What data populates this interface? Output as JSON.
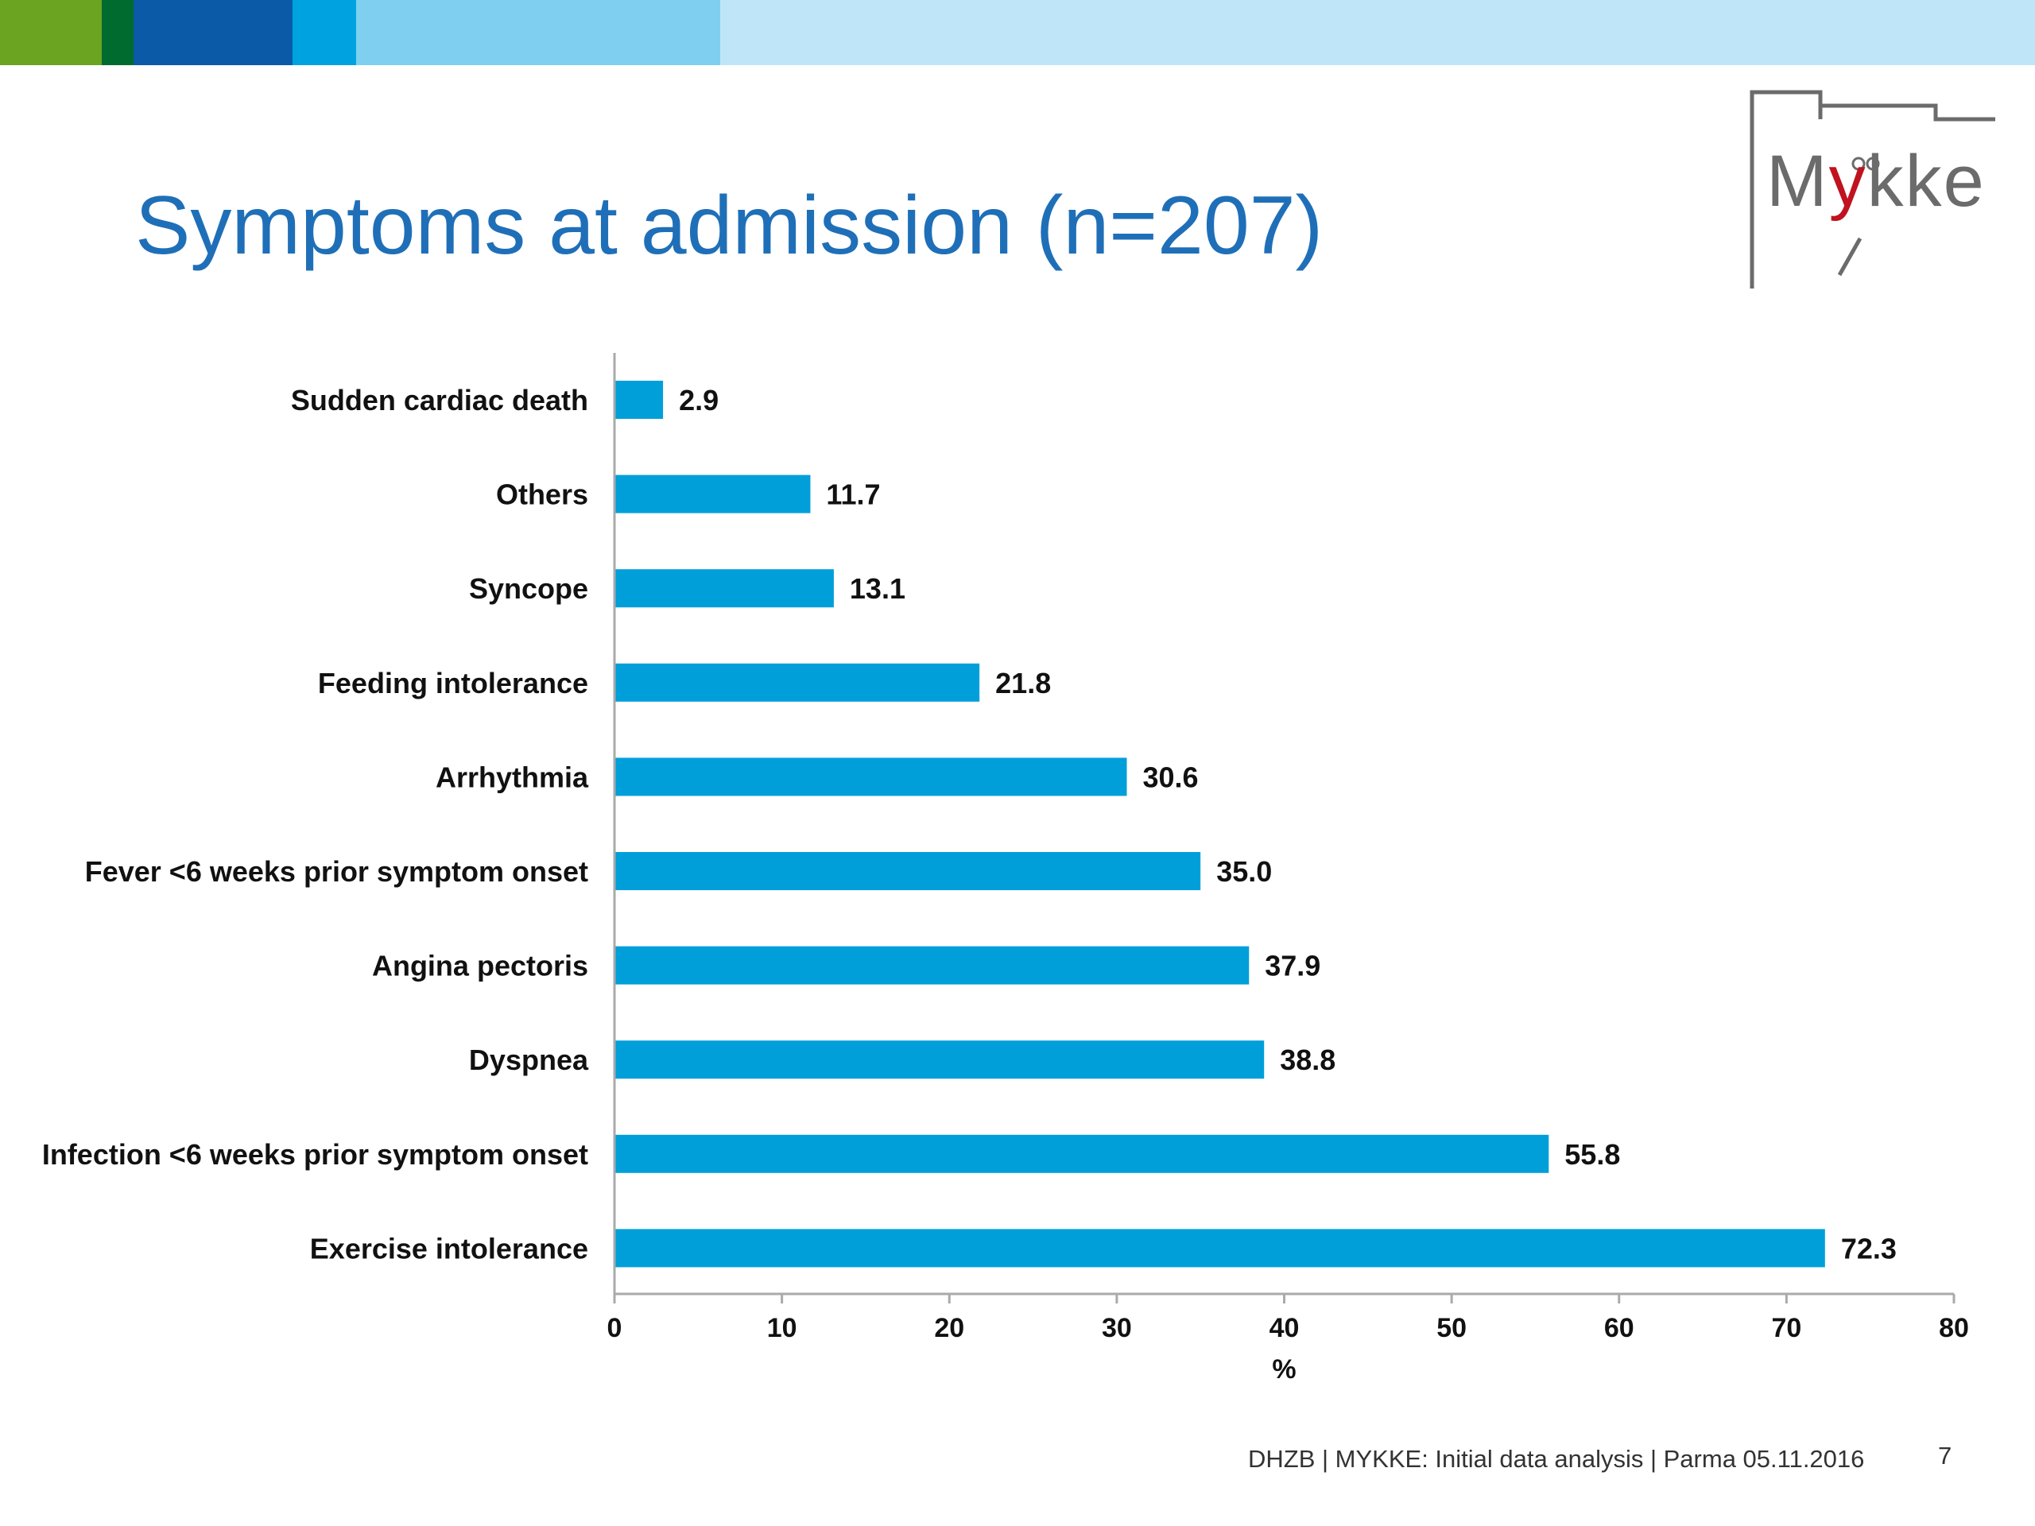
{
  "slide": {
    "title": "Symptoms at admission (n=207)",
    "footer": "DHZB | MYKKE: Initial data analysis | Parma 05.11.2016",
    "page_number": "7",
    "logo": {
      "prefix": "M",
      "accent": "y",
      "suffix": "kke"
    },
    "colors": {
      "title": "#1f6fb8",
      "bar": "#009fda",
      "topbar": [
        "#6aa421",
        "#006b2e",
        "#0a5aa8",
        "#00a3e0",
        "#7fd0f0",
        "#bfe6f8"
      ]
    }
  },
  "chart_data": {
    "type": "bar",
    "orientation": "horizontal",
    "categories": [
      "Sudden cardiac death",
      "Others",
      "Syncope",
      "Feeding intolerance",
      "Arrhythmia",
      "Fever <6 weeks prior symptom onset",
      "Angina pectoris",
      "Dyspnea",
      "Infection  <6 weeks prior symptom onset",
      "Exercise intolerance"
    ],
    "values": [
      2.9,
      11.7,
      13.1,
      21.8,
      30.6,
      35.0,
      37.9,
      38.8,
      55.8,
      72.3
    ],
    "value_labels": [
      "2.9",
      "11.7",
      "13.1",
      "21.8",
      "30.6",
      "35.0",
      "37.9",
      "38.8",
      "55.8",
      "72.3"
    ],
    "xlabel": "%",
    "xlim": [
      0,
      80
    ],
    "xticks": [
      0,
      10,
      20,
      30,
      40,
      50,
      60,
      70,
      80
    ],
    "grid": false,
    "legend": "none"
  }
}
